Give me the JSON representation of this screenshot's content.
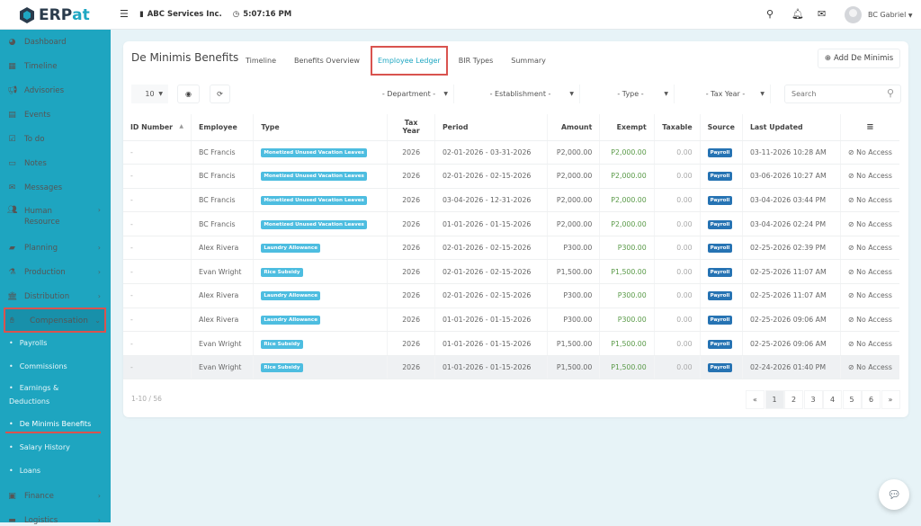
{
  "app": {
    "logo": "ERPat",
    "logo_prefix": "ERP",
    "logo_suffix": "at",
    "company": "ABC Services Inc.",
    "time": "5:07:16 PM",
    "user": "BC Gabriel"
  },
  "colors": {
    "sidebar": "#1ea5c0",
    "accent": "#1fa7c2",
    "badge": "#4dbde0",
    "source_badge": "#2673b3",
    "highlight_box": "#d9534f",
    "exempt_text": "#5a9a48"
  },
  "sidebar": {
    "items": [
      {
        "label": "Dashboard",
        "icon": "dashboard-icon"
      },
      {
        "label": "Timeline",
        "icon": "timeline-icon"
      },
      {
        "label": "Advisories",
        "icon": "megaphone-icon"
      },
      {
        "label": "Events",
        "icon": "calendar-icon"
      },
      {
        "label": "To do",
        "icon": "checkbox-icon"
      },
      {
        "label": "Notes",
        "icon": "note-icon"
      },
      {
        "label": "Messages",
        "icon": "envelope-icon"
      },
      {
        "label": "Human Resource",
        "icon": "users-icon"
      },
      {
        "label": "Planning",
        "icon": "briefcase-icon"
      },
      {
        "label": "Production",
        "icon": "flask-icon"
      },
      {
        "label": "Distribution",
        "icon": "bank-icon"
      },
      {
        "label": "Compensation",
        "icon": "hand-money-icon"
      },
      {
        "label": "Finance",
        "icon": "money-icon"
      },
      {
        "label": "Logistics",
        "icon": "truck-icon"
      }
    ],
    "compensation_sub": [
      "Payrolls",
      "Commissions",
      "Earnings &",
      "Deductions",
      "De Minimis Benefits",
      "Salary History",
      "Loans"
    ]
  },
  "page": {
    "title": "De Minimis Benefits",
    "tabs": [
      "Timeline",
      "Benefits Overview",
      "Employee Ledger",
      "BIR Types",
      "Summary"
    ],
    "active_tab": "Employee Ledger",
    "add_button": "Add De Minimis"
  },
  "toolbar": {
    "page_size": "10",
    "filters": [
      "- Department -",
      "- Establishment -",
      "- Type -",
      "- Tax Year -"
    ],
    "search_placeholder": "Search"
  },
  "table": {
    "columns": [
      "ID Number",
      "Employee",
      "Type",
      "Tax Year",
      "Period",
      "Amount",
      "Exempt",
      "Taxable",
      "Source",
      "Last Updated"
    ],
    "rows": [
      [
        "-",
        "BC Francis",
        "Monetized Unused Vacation Leaves",
        "2026",
        "02-01-2026 - 03-31-2026",
        "P2,000.00",
        "P2,000.00",
        "0.00",
        "Payroll",
        "03-11-2026 10:28 AM",
        "No Access"
      ],
      [
        "-",
        "BC Francis",
        "Monetized Unused Vacation Leaves",
        "2026",
        "02-01-2026 - 02-15-2026",
        "P2,000.00",
        "P2,000.00",
        "0.00",
        "Payroll",
        "03-06-2026 10:27 AM",
        "No Access"
      ],
      [
        "-",
        "BC Francis",
        "Monetized Unused Vacation Leaves",
        "2026",
        "03-04-2026 - 12-31-2026",
        "P2,000.00",
        "P2,000.00",
        "0.00",
        "Payroll",
        "03-04-2026 03:44 PM",
        "No Access"
      ],
      [
        "-",
        "BC Francis",
        "Monetized Unused Vacation Leaves",
        "2026",
        "01-01-2026 - 01-15-2026",
        "P2,000.00",
        "P2,000.00",
        "0.00",
        "Payroll",
        "03-04-2026 02:24 PM",
        "No Access"
      ],
      [
        "-",
        "Alex Rivera",
        "Laundry Allowance",
        "2026",
        "02-01-2026 - 02-15-2026",
        "P300.00",
        "P300.00",
        "0.00",
        "Payroll",
        "02-25-2026 02:39 PM",
        "No Access"
      ],
      [
        "-",
        "Evan Wright",
        "Rice Subsidy",
        "2026",
        "02-01-2026 - 02-15-2026",
        "P1,500.00",
        "P1,500.00",
        "0.00",
        "Payroll",
        "02-25-2026 11:07 AM",
        "No Access"
      ],
      [
        "-",
        "Alex Rivera",
        "Laundry Allowance",
        "2026",
        "02-01-2026 - 02-15-2026",
        "P300.00",
        "P300.00",
        "0.00",
        "Payroll",
        "02-25-2026 11:07 AM",
        "No Access"
      ],
      [
        "-",
        "Alex Rivera",
        "Laundry Allowance",
        "2026",
        "01-01-2026 - 01-15-2026",
        "P300.00",
        "P300.00",
        "0.00",
        "Payroll",
        "02-25-2026 09:06 AM",
        "No Access"
      ],
      [
        "-",
        "Evan Wright",
        "Rice Subsidy",
        "2026",
        "01-01-2026 - 01-15-2026",
        "P1,500.00",
        "P1,500.00",
        "0.00",
        "Payroll",
        "02-25-2026 09:06 AM",
        "No Access"
      ],
      [
        "-",
        "Evan Wright",
        "Rice Subsidy",
        "2026",
        "01-01-2026 - 01-15-2026",
        "P1,500.00",
        "P1,500.00",
        "0.00",
        "Payroll",
        "02-24-2026 01:40 PM",
        "No Access"
      ]
    ]
  },
  "pagination": {
    "summary": "1-10 / 56",
    "prev": "«",
    "pages": [
      "1",
      "2",
      "3",
      "4",
      "5",
      "6"
    ],
    "current": "1",
    "next": "»"
  }
}
